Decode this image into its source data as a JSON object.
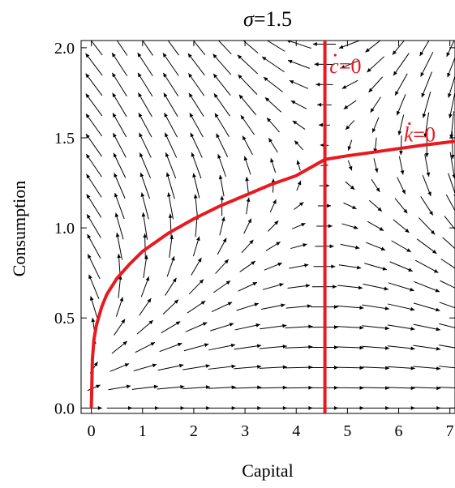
{
  "chart_data": {
    "type": "vector_field",
    "title_symbol": "σ",
    "title_value": "=1.5",
    "xlabel": "Capital",
    "ylabel": "Consumption",
    "xlim": [
      -0.2,
      7.1
    ],
    "ylim": [
      -0.03,
      2.04
    ],
    "x_ticks": [
      "0",
      "1",
      "2",
      "3",
      "4",
      "5",
      "6",
      "7"
    ],
    "y_ticks": [
      "0.0",
      "0.5",
      "1.0",
      "1.5",
      "2.0"
    ],
    "grid": false,
    "sigma": 1.5,
    "curve_color": "#e8191f",
    "arrow_color": "#000000",
    "curves": [
      {
        "name": "c-dot-zero",
        "label": "c",
        "label_suffix": "=0",
        "label_x": 4.65,
        "label_y": 1.86,
        "k_star": 4.56
      },
      {
        "name": "k-dot-zero",
        "label": "k",
        "label_suffix": "=0",
        "label_x": 6.1,
        "label_y": 1.48,
        "points": [
          [
            0,
            0
          ],
          [
            0.02,
            0.27
          ],
          [
            0.05,
            0.38
          ],
          [
            0.1,
            0.46
          ],
          [
            0.2,
            0.56
          ],
          [
            0.3,
            0.63
          ],
          [
            0.5,
            0.72
          ],
          [
            0.75,
            0.8
          ],
          [
            1,
            0.87
          ],
          [
            1.5,
            0.97
          ],
          [
            2,
            1.05
          ],
          [
            2.5,
            1.12
          ],
          [
            3,
            1.18
          ],
          [
            3.5,
            1.24
          ],
          [
            4,
            1.29
          ],
          [
            4.56,
            1.38
          ],
          [
            5,
            1.4
          ],
          [
            5.5,
            1.42
          ],
          [
            6,
            1.44
          ],
          [
            6.5,
            1.46
          ],
          [
            7.1,
            1.48
          ]
        ]
      }
    ]
  }
}
